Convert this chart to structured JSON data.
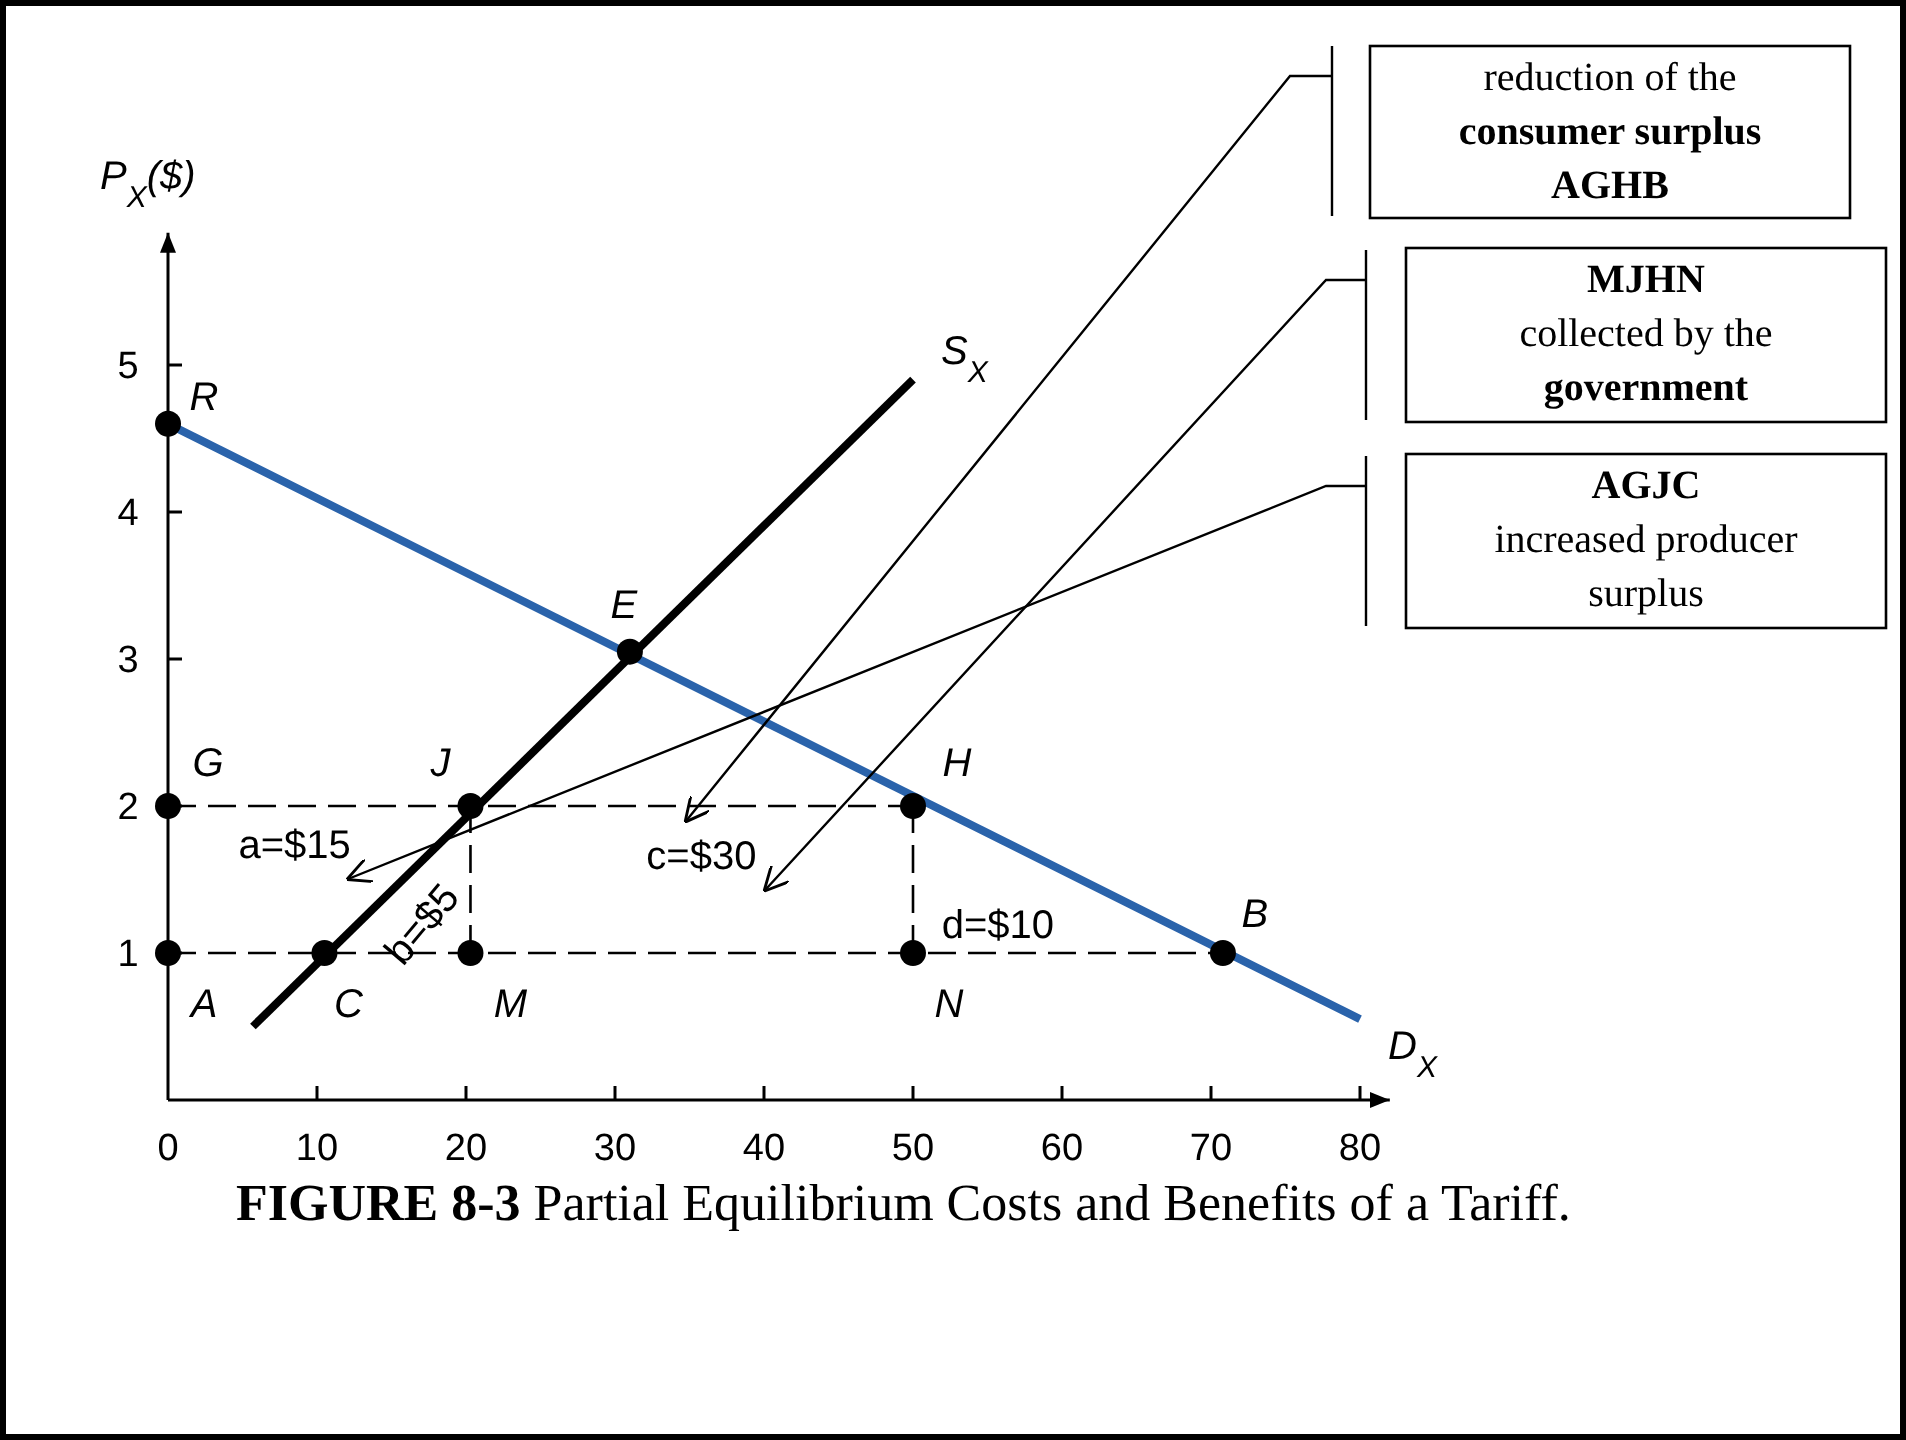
{
  "chart_data": {
    "type": "line",
    "title": "FIGURE 8-3 Partial Equilibrium Costs and Benefits of a Tariff.",
    "ylabel": "P$_{X}$($)",
    "xlim": [
      0,
      82
    ],
    "ylim": [
      0,
      5.9
    ],
    "xticks": [
      0,
      10,
      20,
      30,
      40,
      50,
      60,
      70,
      80
    ],
    "yticks": [
      1,
      2,
      3,
      4,
      5
    ],
    "grid": false,
    "series": [
      {
        "name": "D$_{X}$",
        "color": "#2a63ab",
        "x": [
          0,
          80
        ],
        "values": [
          4.6,
          0.55
        ]
      },
      {
        "name": "S$_{X}$",
        "color": "#000000",
        "x": [
          5.7,
          50
        ],
        "values": [
          0.5,
          4.9
        ]
      },
      {
        "color": "#000000",
        "line_style": "dashed",
        "x": [
          0,
          50
        ],
        "values": [
          2,
          2
        ]
      },
      {
        "color": "#000000",
        "line_style": "dashed",
        "x": [
          0,
          70.8
        ],
        "values": [
          1,
          1
        ]
      },
      {
        "color": "#000000",
        "line_style": "dashed",
        "x": [
          20.3,
          20.3
        ],
        "values": [
          1,
          2
        ]
      },
      {
        "color": "#000000",
        "line_style": "dashed",
        "x": [
          50,
          50
        ],
        "values": [
          1,
          2
        ]
      },
      {
        "type": "scatter",
        "color": "#000000",
        "marker": "circle",
        "x": [
          0,
          31,
          0,
          20.3,
          50,
          0,
          10.5,
          20.3,
          50,
          70.8
        ],
        "values": [
          4.6,
          3.05,
          2,
          2,
          2,
          1,
          1,
          1,
          1,
          1
        ],
        "value_labels": [
          "R",
          "E",
          "G",
          "J",
          "H",
          "A",
          "C",
          "M",
          "N",
          "B"
        ]
      }
    ],
    "annotations": [
      "a=$15",
      "b=$5",
      "c=$30",
      "d=$10",
      "reduction of the consumer surplus AGHB",
      "MJHN collected by the government",
      "AGJC increased producer surplus"
    ]
  }
}
